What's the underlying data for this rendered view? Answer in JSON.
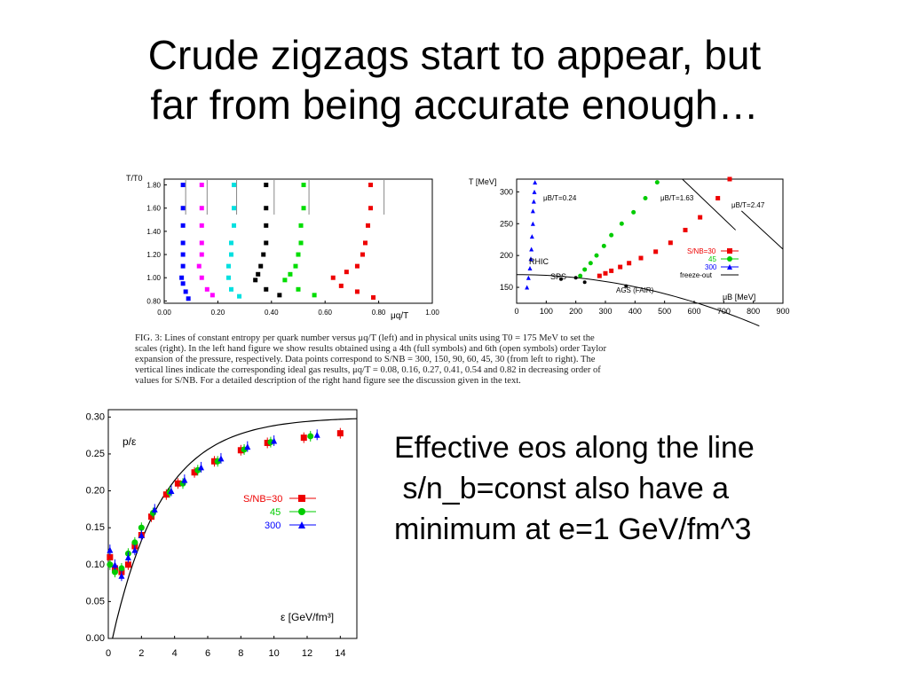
{
  "slide": {
    "title_lines": [
      "Crude zigzags start to appear, but",
      "far from being accurate enough…"
    ],
    "body_lines": [
      "Effective eos along the line",
      " s/n_b=const also have a",
      "minimum at e=1 GeV/fm^3"
    ],
    "caption_lines": [
      "FIG. 3: Lines of constant entropy per quark number versus μq/T (left) and in physical units using T0 = 175 MeV to set the",
      "scales (right). In the left hand figure we show results obtained using a 4th (full symbols) and 6th (open symbols) order Taylor",
      "expansion of the pressure, respectively. Data points correspond to S/NB = 300, 150, 90, 60, 45, 30 (from left to right). The",
      "vertical lines indicate the corresponding ideal gas results, μq/T = 0.08, 0.16, 0.27, 0.41, 0.54 and 0.82 in decreasing order of",
      "values for S/NB. For a detailed description of the right hand figure see the discussion given in the text."
    ]
  },
  "chart_data": [
    {
      "type": "scatter",
      "ylabel": "T/T0",
      "xlabel": "μq/T",
      "xlim": [
        0,
        1.0
      ],
      "ylim": [
        0.78,
        1.85
      ],
      "x_ticks": [
        "0.00",
        "0.20",
        "0.40",
        "0.60",
        "0.80",
        "1.00"
      ],
      "y_ticks": [
        "0.80",
        "1.00",
        "1.20",
        "1.40",
        "1.60",
        "1.80"
      ],
      "x_tick_values": [
        0,
        0.2,
        0.4,
        0.6,
        0.8,
        1.0
      ],
      "y_tick_values": [
        0.8,
        1.0,
        1.2,
        1.4,
        1.6,
        1.8
      ],
      "ideal_gas_lines": [
        0.08,
        0.16,
        0.27,
        0.41,
        0.54,
        0.82
      ],
      "series": [
        {
          "color": "#0000ff",
          "x": [
            0.07,
            0.07,
            0.07,
            0.07,
            0.07,
            0.07,
            0.065,
            0.07,
            0.08,
            0.09
          ],
          "y": [
            1.8,
            1.6,
            1.45,
            1.3,
            1.2,
            1.1,
            1.0,
            0.95,
            0.88,
            0.82
          ]
        },
        {
          "color": "#ff00ff",
          "x": [
            0.14,
            0.14,
            0.14,
            0.14,
            0.14,
            0.13,
            0.14,
            0.16,
            0.18
          ],
          "y": [
            1.8,
            1.6,
            1.45,
            1.3,
            1.2,
            1.1,
            1.0,
            0.9,
            0.85
          ]
        },
        {
          "color": "#00e0e0",
          "x": [
            0.26,
            0.26,
            0.26,
            0.25,
            0.25,
            0.24,
            0.24,
            0.25,
            0.28
          ],
          "y": [
            1.8,
            1.6,
            1.45,
            1.3,
            1.2,
            1.1,
            1.0,
            0.9,
            0.84
          ]
        },
        {
          "color": "#000000",
          "x": [
            0.38,
            0.38,
            0.38,
            0.38,
            0.37,
            0.36,
            0.35,
            0.34,
            0.38,
            0.43
          ],
          "y": [
            1.8,
            1.6,
            1.45,
            1.3,
            1.2,
            1.1,
            1.03,
            0.98,
            0.9,
            0.85
          ]
        },
        {
          "color": "#00dd00",
          "x": [
            0.52,
            0.52,
            0.51,
            0.51,
            0.5,
            0.49,
            0.47,
            0.45,
            0.5,
            0.56
          ],
          "y": [
            1.8,
            1.6,
            1.45,
            1.3,
            1.2,
            1.1,
            1.03,
            0.98,
            0.9,
            0.85
          ]
        },
        {
          "color": "#ee0000",
          "x": [
            0.77,
            0.77,
            0.76,
            0.75,
            0.74,
            0.72,
            0.68,
            0.63,
            0.66,
            0.72,
            0.78
          ],
          "y": [
            1.8,
            1.6,
            1.45,
            1.3,
            1.2,
            1.1,
            1.05,
            1.0,
            0.93,
            0.88,
            0.83
          ]
        }
      ]
    },
    {
      "type": "scatter",
      "ylabel": "T [MeV]",
      "xlabel": "μB [MeV]",
      "xlim": [
        0,
        900
      ],
      "ylim": [
        125,
        320
      ],
      "x_ticks": [
        "0",
        "100",
        "200",
        "300",
        "400",
        "500",
        "600",
        "700",
        "800",
        "900"
      ],
      "y_ticks": [
        "150",
        "200",
        "250",
        "300"
      ],
      "x_tick_values": [
        0,
        100,
        200,
        300,
        400,
        500,
        600,
        700,
        800,
        900
      ],
      "y_tick_values": [
        150,
        200,
        250,
        300
      ],
      "line_labels": [
        "μB/T=0.24",
        "μB/T=1.63",
        "μB/T=2.47"
      ],
      "annotations": [
        "RHIC",
        "SPS",
        "AGS (FAIR)"
      ],
      "legend": {
        "title": "S/NB",
        "entries": [
          "S/NB=30",
          "45",
          "300",
          "freeze-out"
        ],
        "colors": [
          "#ee0000",
          "#00cc00",
          "#0000ff",
          "#000000"
        ],
        "position": "center-right"
      },
      "series": [
        {
          "name": "S/NB=30",
          "color": "#ee0000",
          "x": [
            280,
            300,
            320,
            350,
            380,
            420,
            470,
            520,
            570,
            620,
            680,
            720
          ],
          "y": [
            168,
            172,
            176,
            182,
            188,
            196,
            206,
            220,
            240,
            260,
            290,
            320
          ]
        },
        {
          "name": "45",
          "color": "#00cc00",
          "x": [
            215,
            230,
            250,
            270,
            295,
            320,
            355,
            395,
            435,
            475
          ],
          "y": [
            168,
            178,
            188,
            200,
            215,
            232,
            250,
            268,
            290,
            315
          ]
        },
        {
          "name": "300",
          "color": "#0000ff",
          "x": [
            35,
            40,
            45,
            48,
            50,
            52,
            55,
            55,
            58,
            60,
            62
          ],
          "y": [
            150,
            165,
            180,
            195,
            210,
            230,
            250,
            270,
            285,
            300,
            315
          ]
        }
      ]
    },
    {
      "type": "scatter",
      "ylabel": "p/ε",
      "xlabel": "ε [GeV/fm³]",
      "xlim": [
        0,
        15
      ],
      "ylim": [
        0,
        0.31
      ],
      "x_ticks": [
        "0",
        "2",
        "4",
        "6",
        "8",
        "10",
        "12",
        "14"
      ],
      "y_ticks": [
        "0.00",
        "0.05",
        "0.10",
        "0.15",
        "0.20",
        "0.25",
        "0.30"
      ],
      "x_tick_values": [
        0,
        2,
        4,
        6,
        8,
        10,
        12,
        14
      ],
      "y_tick_values": [
        0,
        0.05,
        0.1,
        0.15,
        0.2,
        0.25,
        0.3
      ],
      "legend": {
        "title": "S/NB",
        "entries": [
          "S/NB=30",
          "45",
          "300"
        ],
        "colors": [
          "#ee0000",
          "#00cc00",
          "#0000ff"
        ],
        "position": "center-right"
      },
      "ideal_curve": "ε≥0.25",
      "series": [
        {
          "name": "S/NB=30",
          "color": "#ee0000",
          "x": [
            0.1,
            0.4,
            0.8,
            1.2,
            1.6,
            2.0,
            2.6,
            3.5,
            4.2,
            5.2,
            6.4,
            8.0,
            9.6,
            11.8,
            14.0
          ],
          "y": [
            0.11,
            0.095,
            0.09,
            0.1,
            0.125,
            0.14,
            0.165,
            0.195,
            0.21,
            0.225,
            0.24,
            0.255,
            0.265,
            0.272,
            0.278
          ]
        },
        {
          "name": "45",
          "color": "#00cc00",
          "x": [
            0.1,
            0.4,
            0.8,
            1.2,
            1.6,
            2.0,
            2.7,
            3.7,
            4.5,
            5.4,
            6.6,
            8.2,
            9.8,
            12.2
          ],
          "y": [
            0.1,
            0.09,
            0.095,
            0.115,
            0.13,
            0.15,
            0.17,
            0.198,
            0.21,
            0.228,
            0.24,
            0.256,
            0.266,
            0.274
          ]
        },
        {
          "name": "300",
          "color": "#0000ff",
          "x": [
            0.1,
            0.4,
            0.8,
            1.2,
            1.6,
            2.0,
            2.8,
            3.8,
            4.6,
            5.6,
            6.8,
            8.4,
            10.0,
            12.6
          ],
          "y": [
            0.12,
            0.1,
            0.085,
            0.11,
            0.12,
            0.14,
            0.175,
            0.2,
            0.215,
            0.232,
            0.244,
            0.26,
            0.268,
            0.276
          ]
        }
      ]
    }
  ]
}
